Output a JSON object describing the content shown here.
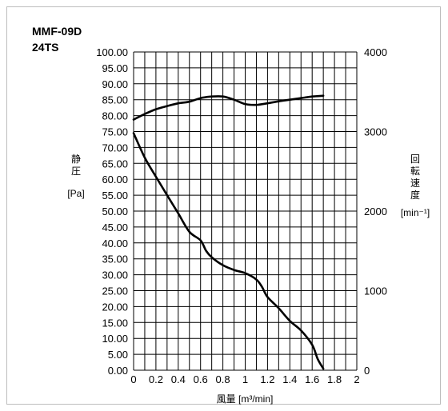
{
  "chart_data": {
    "type": "line",
    "model": "MMF-09D",
    "variant": "24TS",
    "xlabel": "風量 [m³/min]",
    "ylabel_left_chars": [
      "静",
      "圧"
    ],
    "ylabel_left_unit": "[Pa]",
    "ylabel_right_chars": [
      "回",
      "転",
      "速",
      "度"
    ],
    "ylabel_right_unit": "[min⁻¹]",
    "xlim": [
      0,
      2
    ],
    "ylim_left": [
      0,
      100
    ],
    "ylim_right": [
      0,
      4000
    ],
    "x_ticks": [
      "0",
      "0.2",
      "0.4",
      "0.6",
      "0.8",
      "1",
      "1.2",
      "1.4",
      "1.6",
      "1.8",
      "2"
    ],
    "y_left_ticks": [
      "0.00",
      "5.00",
      "10.00",
      "15.00",
      "20.00",
      "25.00",
      "30.00",
      "35.00",
      "40.00",
      "45.00",
      "50.00",
      "55.00",
      "60.00",
      "65.00",
      "70.00",
      "75.00",
      "80.00",
      "85.00",
      "90.00",
      "95.00",
      "100.00"
    ],
    "y_right_ticks": [
      "0",
      "1000",
      "2000",
      "3000",
      "4000"
    ],
    "grid": true,
    "series": [
      {
        "axis": "left",
        "points": [
          [
            0,
            74.5
          ],
          [
            0.1,
            66.8
          ],
          [
            0.2,
            60.8
          ],
          [
            0.3,
            55.0
          ],
          [
            0.4,
            49.3
          ],
          [
            0.5,
            43.5
          ],
          [
            0.6,
            40.8
          ],
          [
            0.65,
            37.5
          ],
          [
            0.7,
            35.5
          ],
          [
            0.8,
            33.0
          ],
          [
            0.9,
            31.5
          ],
          [
            1.0,
            30.5
          ],
          [
            1.1,
            28.5
          ],
          [
            1.15,
            26.2
          ],
          [
            1.2,
            23.0
          ],
          [
            1.3,
            19.5
          ],
          [
            1.4,
            15.5
          ],
          [
            1.5,
            12.5
          ],
          [
            1.6,
            8.0
          ],
          [
            1.65,
            3.5
          ],
          [
            1.7,
            0.5
          ]
        ]
      },
      {
        "axis": "right",
        "points": [
          [
            0,
            3150
          ],
          [
            0.1,
            3220
          ],
          [
            0.2,
            3280
          ],
          [
            0.3,
            3320
          ],
          [
            0.4,
            3355
          ],
          [
            0.5,
            3375
          ],
          [
            0.6,
            3420
          ],
          [
            0.7,
            3440
          ],
          [
            0.8,
            3440
          ],
          [
            0.9,
            3400
          ],
          [
            1.0,
            3345
          ],
          [
            1.1,
            3335
          ],
          [
            1.2,
            3355
          ],
          [
            1.3,
            3380
          ],
          [
            1.4,
            3400
          ],
          [
            1.5,
            3420
          ],
          [
            1.6,
            3440
          ],
          [
            1.7,
            3450
          ]
        ]
      }
    ]
  }
}
